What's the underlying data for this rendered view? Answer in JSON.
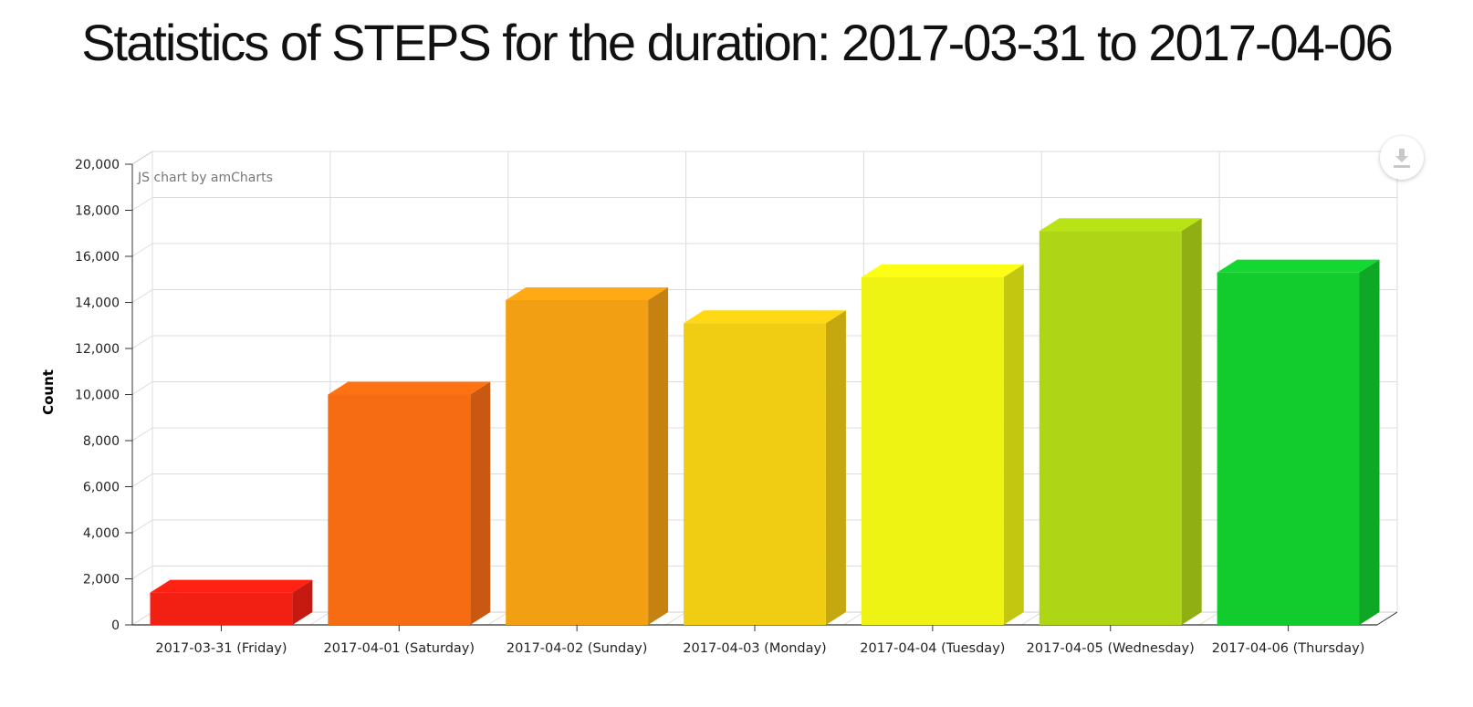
{
  "title": "Statistics of STEPS for the duration: 2017-03-31 to 2017-04-06",
  "credit": "JS chart by amCharts",
  "icons": {
    "export": "download-icon"
  },
  "chart_data": {
    "type": "bar",
    "style": "3d-column",
    "title": "Statistics of STEPS for the duration: 2017-03-31 to 2017-04-06",
    "xlabel": "",
    "ylabel": "Count",
    "ylim": [
      0,
      20000
    ],
    "yticks": [
      0,
      2000,
      4000,
      6000,
      8000,
      10000,
      12000,
      14000,
      16000,
      18000,
      20000
    ],
    "ytick_labels": [
      "0",
      "2,000",
      "4,000",
      "6,000",
      "8,000",
      "10,000",
      "12,000",
      "14,000",
      "16,000",
      "18,000",
      "20,000"
    ],
    "grid": true,
    "legend": "none",
    "categories": [
      "2017-03-31 (Friday)",
      "2017-04-01 (Saturday)",
      "2017-04-02 (Sunday)",
      "2017-04-03 (Monday)",
      "2017-04-04 (Tuesday)",
      "2017-04-05 (Wednesday)",
      "2017-04-06 (Thursday)"
    ],
    "values": [
      1400,
      10000,
      14100,
      13100,
      15100,
      17100,
      15300
    ],
    "colors": [
      "#f21f13",
      "#f56c13",
      "#f29f13",
      "#f0cd13",
      "#eef313",
      "#aed616",
      "#12cc2e"
    ]
  }
}
